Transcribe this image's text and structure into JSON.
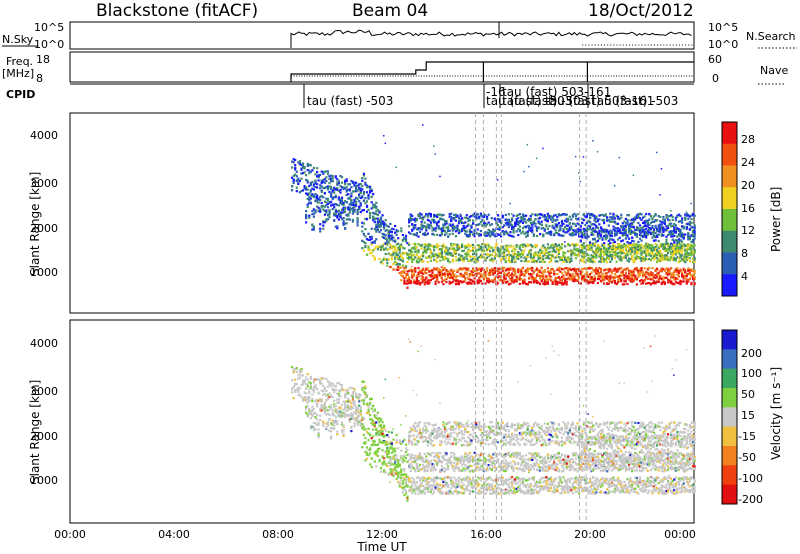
{
  "header": {
    "station_label": "Blackstone (fitACF)",
    "beam_label": "Beam 04",
    "date_label": "18/Oct/2012"
  },
  "top_panels": {
    "nsky_label": "N.Sky",
    "nsky_ticks": [
      "10^5",
      "10^0"
    ],
    "nsearch_label": "N.Search",
    "nsearch_ticks": [
      "10^5",
      "10^0"
    ],
    "freq_label": "Freq.",
    "freq_unit": "[MHz]",
    "freq_ticks": [
      "18",
      "8"
    ],
    "nave_label": "Nave",
    "nave_ticks": [
      "60",
      "0"
    ],
    "cpid_label": "CPID",
    "cpid_annotations": [
      "tau (fast) -503",
      "-16",
      "tau (fast) 503-161",
      "tau (fast) -503",
      "tau (fast) -503",
      "tau (fast) 503-161",
      "tau (fast) -503"
    ]
  },
  "chart_data": [
    {
      "type": "heatmap",
      "panel": "power",
      "ylabel": "Slant Range [km]",
      "ylim": [
        180,
        4500
      ],
      "yticks": [
        "1000",
        "2000",
        "3000",
        "4000"
      ],
      "x_range_hours": [
        0,
        24
      ],
      "colorbar_label": "Power [dB]",
      "colorbar_ticks": [
        "4",
        "8",
        "12",
        "16",
        "20",
        "24",
        "28"
      ],
      "colors": [
        "#1a1aff",
        "#2a5fb5",
        "#3d8a6e",
        "#6fbf3a",
        "#f0d020",
        "#f09020",
        "#f05010",
        "#e81010"
      ],
      "description_of_data_extent": "data present from about 08:30 to 24:00 UT"
    },
    {
      "type": "heatmap",
      "panel": "velocity",
      "ylabel": "Slant Range [km]",
      "xlabel": "Time UT",
      "ylim": [
        180,
        4500
      ],
      "yticks": [
        "1000",
        "2000",
        "3000",
        "4000"
      ],
      "xticks": [
        "00:00",
        "04:00",
        "08:00",
        "12:00",
        "16:00",
        "20:00",
        "00:00"
      ],
      "colorbar_label": "Velocity [m s⁻¹]",
      "colorbar_ticks": [
        "200",
        "100",
        "50",
        "15",
        "-15",
        "-50",
        "-100",
        "-200"
      ],
      "colors": [
        "#1a1ad0",
        "#3a6fbf",
        "#3aa860",
        "#7fd040",
        "#c8c8c8",
        "#f0c040",
        "#f08020",
        "#f04010",
        "#e01010"
      ]
    }
  ]
}
